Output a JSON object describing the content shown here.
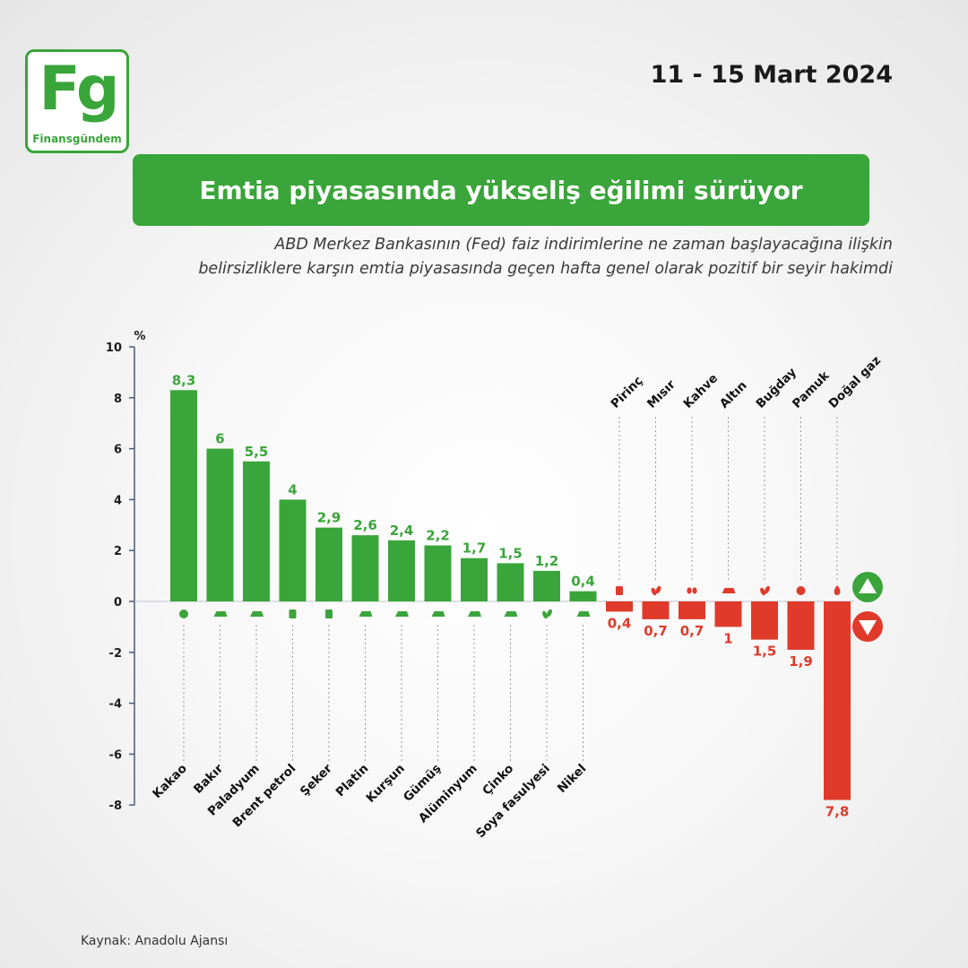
{
  "header": {
    "logo_text": "Finansgündem",
    "date": "11 - 15 Mart 2024",
    "title": "Emtia piyasasında yükseliş eğilimi sürüyor",
    "subtitle_lines": [
      "ABD Merkez Bankasının (Fed) faiz indirimlerine ne zaman başlayacağına ilişkin",
      "belirsizliklere karşın emtia piyasasında geçen hafta genel olarak pozitif bir seyir hakimdi"
    ]
  },
  "footer": {
    "source": "Kaynak: Anadolu Ajansı"
  },
  "colors": {
    "positive": "#3aa53a",
    "negative": "#e03a2b",
    "axis": "#4a5a78"
  },
  "chart_data": {
    "type": "bar",
    "title": "Emtia piyasasında yükseliş eğilimi sürüyor",
    "ylabel": "%",
    "ylim": [
      -8,
      10
    ],
    "yticks": [
      10,
      8,
      6,
      4,
      2,
      0,
      -2,
      -4,
      -6,
      -8
    ],
    "grid": false,
    "categories": [
      "Kakao",
      "Bakır",
      "Paladyum",
      "Brent petrol",
      "Şeker",
      "Platin",
      "Kurşun",
      "Gümüş",
      "Alüminyum",
      "Çinko",
      "Soya fasulyesi",
      "Nikel",
      "Pirinç",
      "Mısır",
      "Kahve",
      "Altın",
      "Buğday",
      "Pamuk",
      "Doğal gaz"
    ],
    "values": [
      8.3,
      6,
      5.5,
      4,
      2.9,
      2.6,
      2.4,
      2.2,
      1.7,
      1.5,
      1.2,
      0.4,
      -0.4,
      -0.7,
      -0.7,
      -1,
      -1.5,
      -1.9,
      -7.8
    ],
    "value_labels": [
      "8,3",
      "6",
      "5,5",
      "4",
      "2,9",
      "2,6",
      "2,4",
      "2,2",
      "1,7",
      "1,5",
      "1,2",
      "0,4",
      "0,4",
      "0,7",
      "0,7",
      "1",
      "1,5",
      "1,9",
      "7,8"
    ],
    "icons": [
      "cocoa-icon",
      "ingot-icon",
      "ingot-icon",
      "oil-barrel-icon",
      "sugar-bag-icon",
      "ingot-icon",
      "ingot-icon",
      "ingot-icon",
      "ingot-icon",
      "ingot-icon",
      "soybean-icon",
      "ingot-icon",
      "rice-bag-icon",
      "corn-icon",
      "coffee-beans-icon",
      "gold-icon",
      "wheat-icon",
      "cotton-icon",
      "gas-flame-icon"
    ],
    "legend": [
      {
        "name": "up-arrow-icon",
        "color": "#3aa53a"
      },
      {
        "name": "down-arrow-icon",
        "color": "#e03a2b"
      }
    ]
  }
}
